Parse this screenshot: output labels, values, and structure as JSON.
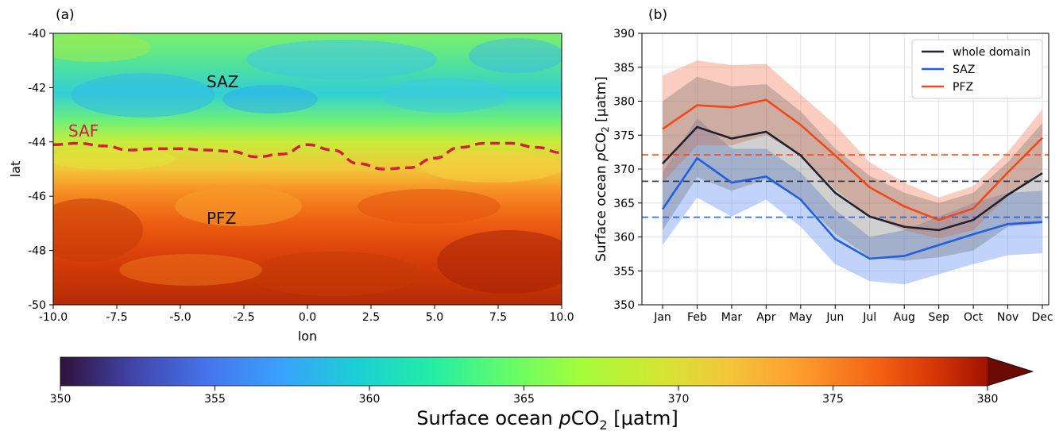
{
  "panel_a": {
    "label": "(a)",
    "xlabel": "lon",
    "ylabel": "lat",
    "x_ticks": [
      "-10.0",
      "-7.5",
      "-5.0",
      "-2.5",
      "0.0",
      "2.5",
      "5.0",
      "7.5",
      "10.0"
    ],
    "y_ticks": [
      "-40",
      "-42",
      "-44",
      "-46",
      "-48",
      "-50"
    ],
    "region_labels": {
      "saz": "SAZ",
      "pfz": "PFZ",
      "saf": "SAF"
    },
    "colors": {
      "saf_line": "#d0213a"
    }
  },
  "panel_b": {
    "label": "(b)",
    "ylabel_pre": "Surface ocean ",
    "ylabel_italic": "p",
    "ylabel_co": "CO",
    "ylabel_sub": "2",
    "ylabel_unit": " [μatm]",
    "y_ticks": [
      "350",
      "355",
      "360",
      "365",
      "370",
      "375",
      "380",
      "385",
      "390"
    ],
    "legend": [
      "whole domain",
      "SAZ",
      "PFZ"
    ]
  },
  "colorbar": {
    "ticks": [
      "350",
      "355",
      "360",
      "365",
      "370",
      "375",
      "380"
    ],
    "label_pre": "Surface ocean ",
    "label_italic": "p",
    "label_co": "CO",
    "label_sub": "2",
    "label_unit": " [μatm]",
    "range": [
      350,
      380
    ],
    "extend": "max"
  },
  "chart_data": [
    {
      "type": "heatmap",
      "title": "",
      "xlabel": "lon",
      "ylabel": "lat",
      "xlim": [
        -10,
        10
      ],
      "ylim": [
        -50,
        -40
      ],
      "colormap": "turbo",
      "value_range": [
        350,
        380
      ],
      "saf_front_lat": [
        [
          -10,
          -44.1
        ],
        [
          -9,
          -44.05
        ],
        [
          -8,
          -44.15
        ],
        [
          -7,
          -44.3
        ],
        [
          -6,
          -44.25
        ],
        [
          -5,
          -44.25
        ],
        [
          -4,
          -44.3
        ],
        [
          -3,
          -44.35
        ],
        [
          -2,
          -44.55
        ],
        [
          -1,
          -44.45
        ],
        [
          0,
          -44.1
        ],
        [
          1,
          -44.3
        ],
        [
          2,
          -44.8
        ],
        [
          3,
          -45.0
        ],
        [
          4,
          -44.95
        ],
        [
          5,
          -44.6
        ],
        [
          6,
          -44.2
        ],
        [
          7,
          -44.05
        ],
        [
          8,
          -44.05
        ],
        [
          9,
          -44.2
        ],
        [
          10,
          -44.4
        ]
      ],
      "annotations": [
        "SAZ",
        "PFZ",
        "SAF"
      ]
    },
    {
      "type": "line",
      "title": "",
      "xlabel": "",
      "ylabel": "Surface ocean pCO2 [μatm]",
      "categories": [
        "Jan",
        "Feb",
        "Mar",
        "Apr",
        "May",
        "Jun",
        "Jul",
        "Aug",
        "Sep",
        "Oct",
        "Nov",
        "Dec"
      ],
      "ylim": [
        350,
        390
      ],
      "grid": true,
      "legend_position": "top-right",
      "series": [
        {
          "name": "whole domain",
          "color": "#1f2330",
          "values": [
            370.8,
            376.2,
            374.5,
            375.5,
            372.0,
            366.5,
            363.0,
            361.5,
            361.0,
            362.5,
            366.2,
            369.4
          ],
          "upper": [
            380.0,
            383.6,
            382.2,
            382.5,
            378.5,
            373.0,
            369.0,
            366.5,
            365.0,
            366.5,
            371.0,
            376.8
          ],
          "lower": [
            361.0,
            368.8,
            366.8,
            368.5,
            365.5,
            360.5,
            357.0,
            356.5,
            357.0,
            358.0,
            361.5,
            362.0
          ],
          "mean": 368.2
        },
        {
          "name": "SAZ",
          "color": "#2060e0",
          "values": [
            364.1,
            371.6,
            368.0,
            368.9,
            365.5,
            359.7,
            356.8,
            357.2,
            358.8,
            360.4,
            361.9,
            362.2
          ],
          "upper": [
            369.5,
            377.5,
            373.0,
            373.0,
            369.5,
            364.0,
            360.0,
            361.0,
            363.0,
            365.0,
            366.5,
            366.8
          ],
          "lower": [
            358.8,
            365.8,
            363.0,
            365.5,
            361.5,
            356.0,
            353.5,
            353.0,
            354.5,
            356.0,
            357.3,
            357.6
          ],
          "mean": 362.9
        },
        {
          "name": "PFZ",
          "color": "#f04a1a",
          "values": [
            375.9,
            379.4,
            379.1,
            380.2,
            376.5,
            372.0,
            367.3,
            364.5,
            362.5,
            364.2,
            369.5,
            374.6
          ],
          "upper": [
            383.8,
            386.0,
            385.3,
            385.5,
            381.0,
            376.5,
            371.0,
            368.0,
            365.8,
            367.5,
            372.5,
            378.8
          ],
          "lower": [
            368.0,
            373.5,
            373.5,
            375.0,
            372.0,
            367.0,
            363.0,
            361.0,
            359.8,
            361.0,
            366.0,
            369.8
          ],
          "mean": 372.1
        }
      ]
    }
  ]
}
